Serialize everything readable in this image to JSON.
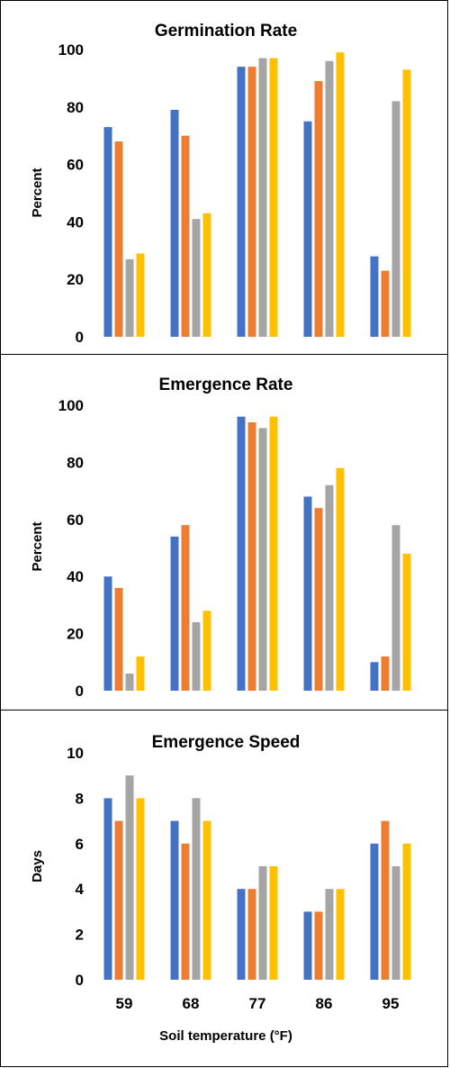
{
  "colors": [
    "#4472C4",
    "#ED7D31",
    "#A5A5A5",
    "#FFC000"
  ],
  "chart_data": [
    {
      "type": "bar",
      "title": "Germination Rate",
      "ylabel": "Percent",
      "xlabel": "",
      "categories": [
        "59",
        "68",
        "77",
        "86",
        "95"
      ],
      "show_xticks": false,
      "ylim": [
        0,
        100
      ],
      "yticks": [
        0,
        20,
        40,
        60,
        80,
        100
      ],
      "series": [
        {
          "values": [
            73,
            79,
            94,
            75,
            28
          ]
        },
        {
          "values": [
            68,
            70,
            94,
            89,
            23
          ]
        },
        {
          "values": [
            27,
            41,
            97,
            96,
            82
          ]
        },
        {
          "values": [
            29,
            43,
            97,
            99,
            93
          ]
        }
      ]
    },
    {
      "type": "bar",
      "title": "Emergence Rate",
      "ylabel": "Percent",
      "xlabel": "",
      "categories": [
        "59",
        "68",
        "77",
        "86",
        "95"
      ],
      "show_xticks": false,
      "ylim": [
        0,
        100
      ],
      "yticks": [
        0,
        20,
        40,
        60,
        80,
        100
      ],
      "series": [
        {
          "values": [
            40,
            54,
            96,
            68,
            10
          ]
        },
        {
          "values": [
            36,
            58,
            94,
            64,
            12
          ]
        },
        {
          "values": [
            6,
            24,
            92,
            72,
            58
          ]
        },
        {
          "values": [
            12,
            28,
            96,
            78,
            48
          ]
        }
      ]
    },
    {
      "type": "bar",
      "title": "Emergence Speed",
      "ylabel": "Days",
      "xlabel": "Soil temperature (°F)",
      "categories": [
        "59",
        "68",
        "77",
        "86",
        "95"
      ],
      "show_xticks": true,
      "ylim": [
        0,
        10
      ],
      "yticks": [
        0,
        2,
        4,
        6,
        8,
        10
      ],
      "series": [
        {
          "values": [
            8,
            7,
            4,
            3,
            6
          ]
        },
        {
          "values": [
            7,
            6,
            4,
            3,
            7
          ]
        },
        {
          "values": [
            9,
            8,
            5,
            4,
            5
          ]
        },
        {
          "values": [
            8,
            7,
            5,
            4,
            6
          ]
        }
      ]
    }
  ]
}
